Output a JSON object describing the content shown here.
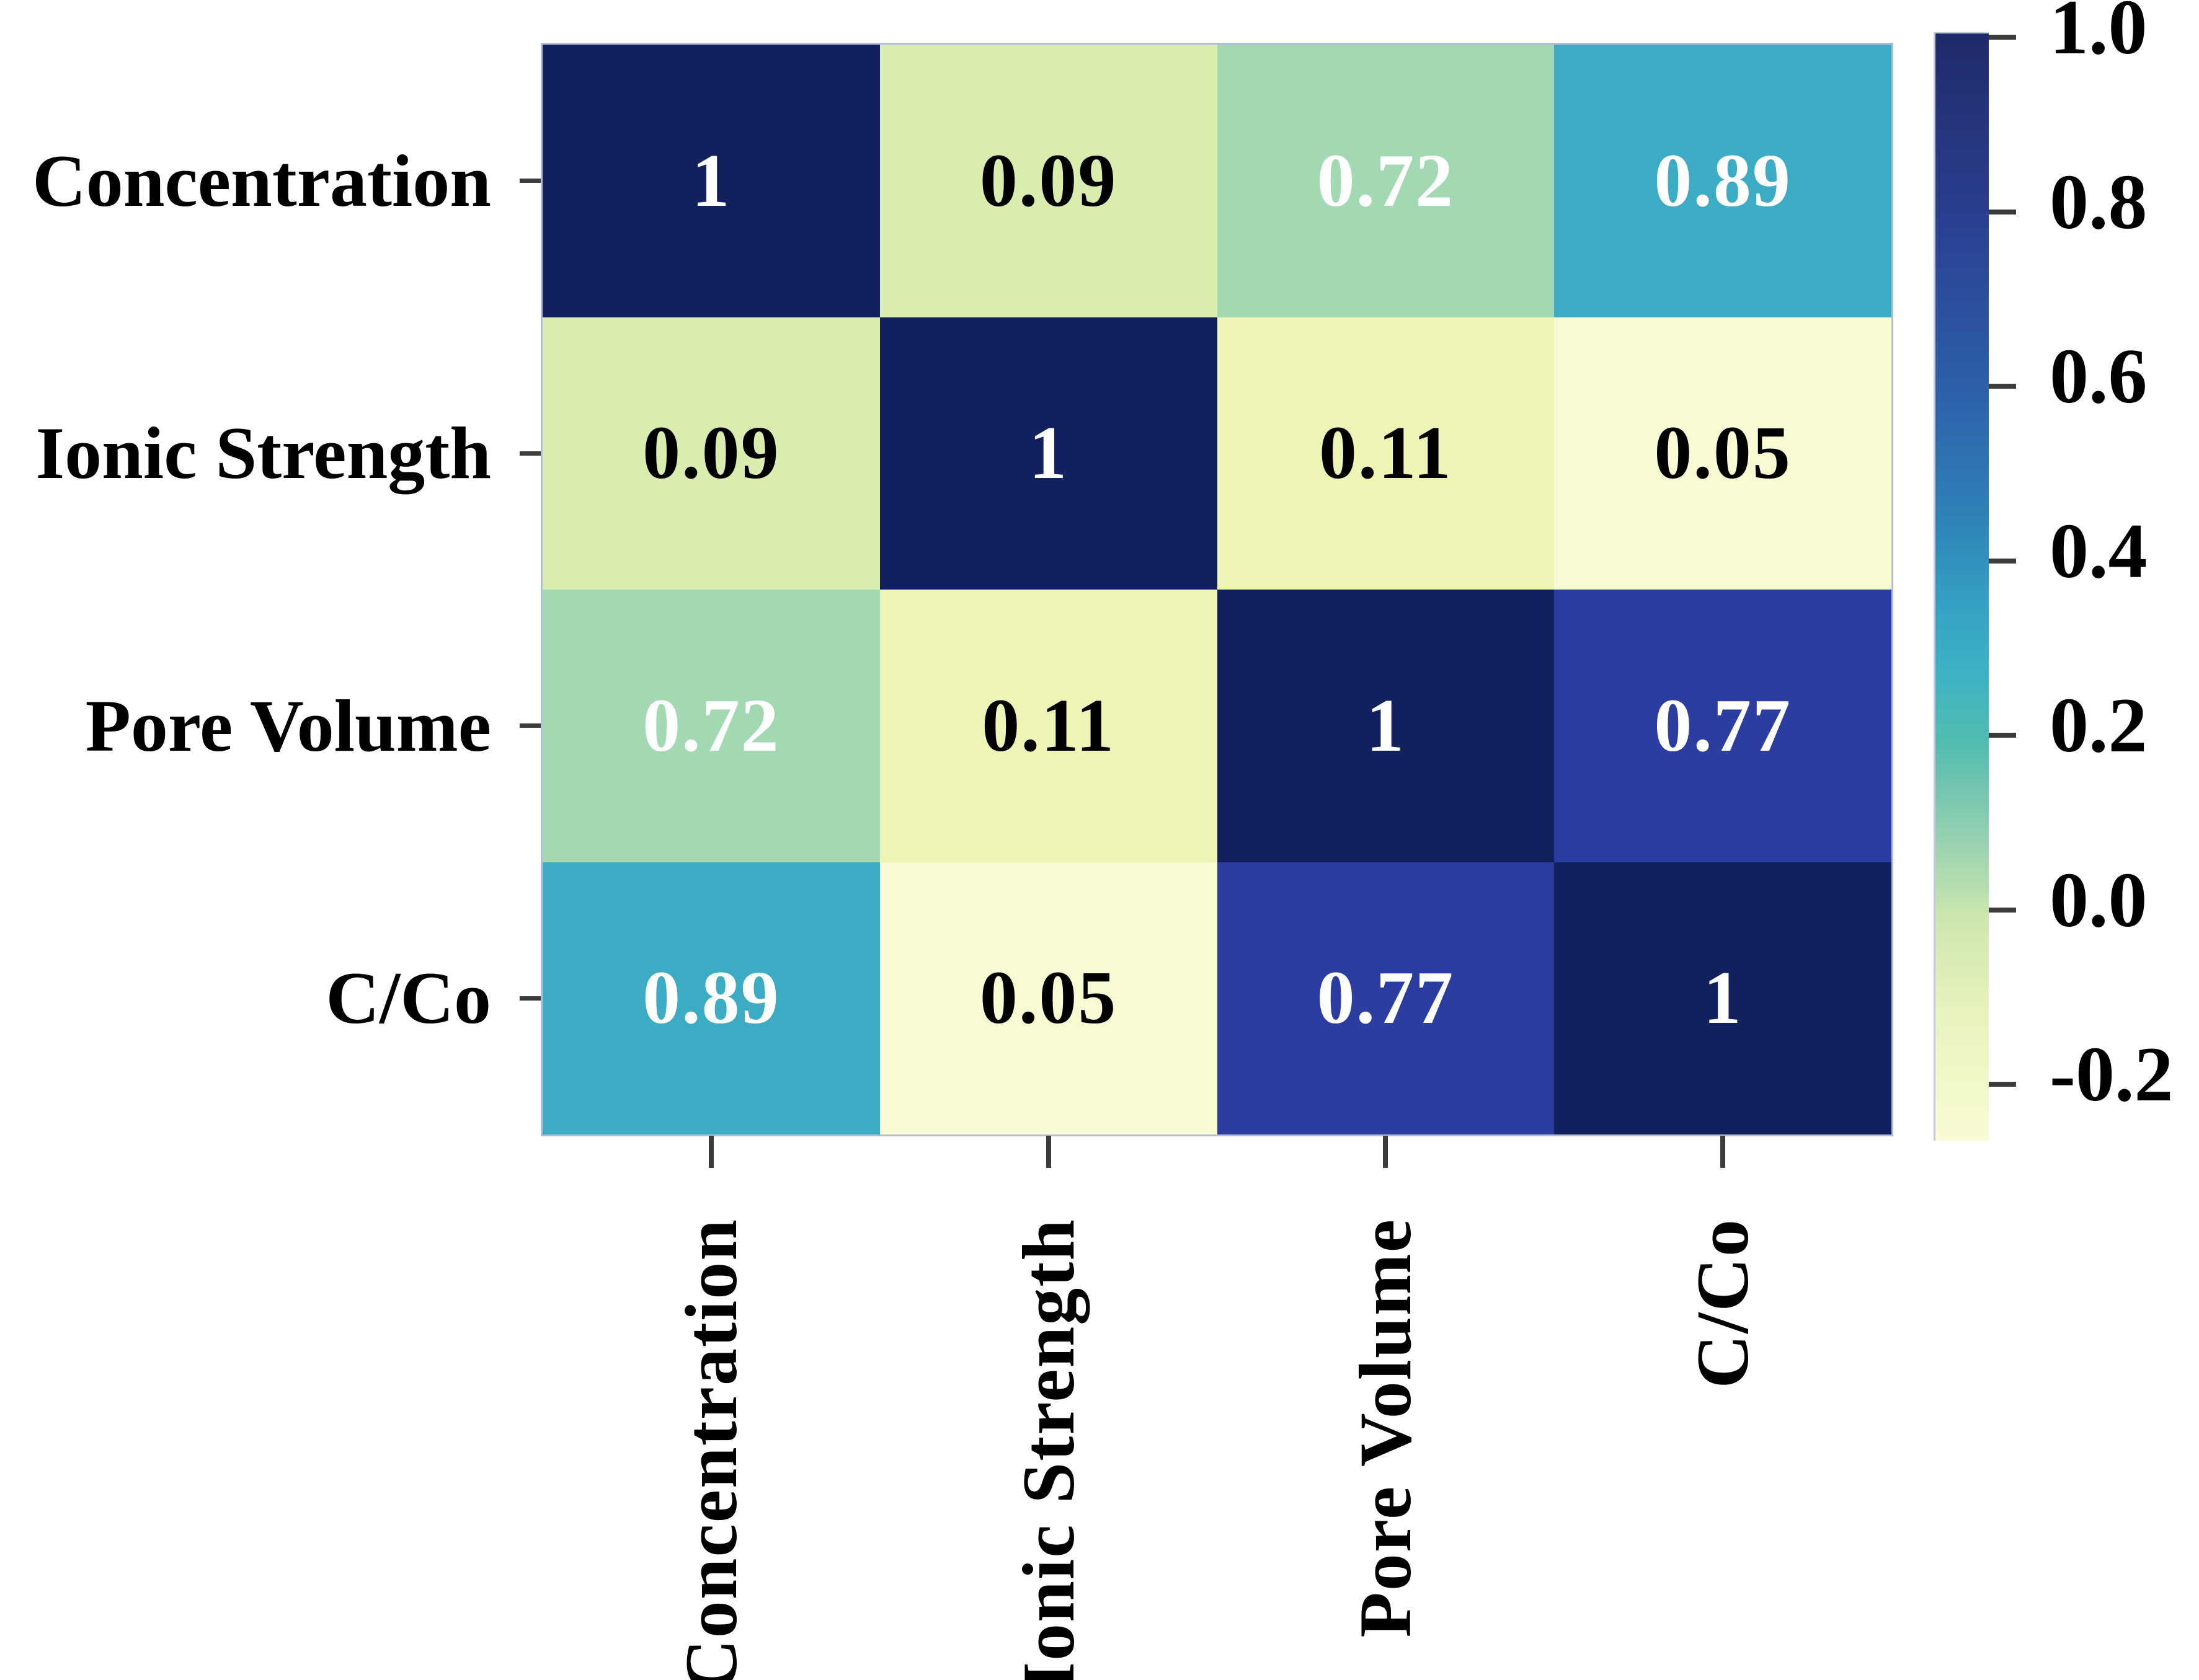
{
  "chart_data": {
    "type": "heatmap",
    "title": "",
    "categories": [
      "Concentration",
      "Ionic Strength",
      "Pore Volume",
      "C/Co"
    ],
    "row_labels": [
      "Concentration",
      "Ionic Strength",
      "Pore Volume",
      "C/Co"
    ],
    "col_labels": [
      "Concentration",
      "Ionic Strength",
      "Pore Volume",
      "C/Co"
    ],
    "matrix": [
      [
        1,
        0.09,
        0.72,
        0.89
      ],
      [
        0.09,
        1,
        0.11,
        0.05
      ],
      [
        0.72,
        0.11,
        1,
        0.77
      ],
      [
        0.89,
        0.05,
        0.77,
        1
      ]
    ],
    "cell_labels": [
      [
        "1",
        "0.09",
        "0.72",
        "0.89"
      ],
      [
        "0.09",
        "1",
        "0.11",
        "0.05"
      ],
      [
        "0.72",
        "0.11",
        "1",
        "0.77"
      ],
      [
        "0.89",
        "0.05",
        "0.77",
        "1"
      ]
    ],
    "value_styles": {
      "1": {
        "bg": "#12215d",
        "fg": "#ffffff"
      },
      "0.09": {
        "bg": "#d8edae",
        "fg": "#000000"
      },
      "0.72": {
        "bg": "#a2d8b2",
        "fg": "#ffffff"
      },
      "0.89": {
        "bg": "#3bacc3",
        "fg": "#ffffff"
      },
      "0.11": {
        "bg": "#edf4b6",
        "fg": "#000000"
      },
      "0.05": {
        "bg": "#f8fbd1",
        "fg": "#000000"
      },
      "0.77": {
        "bg": "#2b3da0",
        "fg": "#ffffff"
      }
    },
    "colorbar": {
      "position": "right",
      "tick_labels": [
        "1.0",
        "0.8",
        "0.6",
        "0.4",
        "0.2",
        "0.0",
        "-0.2"
      ],
      "value_range": [
        -0.25,
        1.0
      ],
      "gradient_stops": [
        {
          "pos": 0,
          "color": "#1e2a69"
        },
        {
          "pos": 8,
          "color": "#26347c"
        },
        {
          "pos": 16,
          "color": "#2a3e8e"
        },
        {
          "pos": 32,
          "color": "#2d5fa9"
        },
        {
          "pos": 44,
          "color": "#2f83b8"
        },
        {
          "pos": 52,
          "color": "#35a2c3"
        },
        {
          "pos": 58,
          "color": "#3db3c4"
        },
        {
          "pos": 64,
          "color": "#52bcb0"
        },
        {
          "pos": 72,
          "color": "#91cfb0"
        },
        {
          "pos": 80,
          "color": "#cde7ae"
        },
        {
          "pos": 88,
          "color": "#e7f2bc"
        },
        {
          "pos": 96,
          "color": "#f4f9cb"
        },
        {
          "pos": 100,
          "color": "#f8fbd3"
        }
      ]
    },
    "grid": false,
    "legend": false,
    "xlabel": "",
    "ylabel": "",
    "colors": {
      "background": "#ffffff",
      "tick_mark": "#3c3c3c",
      "axis_edge": "#b5bcd6",
      "label_text": "#000000"
    }
  }
}
